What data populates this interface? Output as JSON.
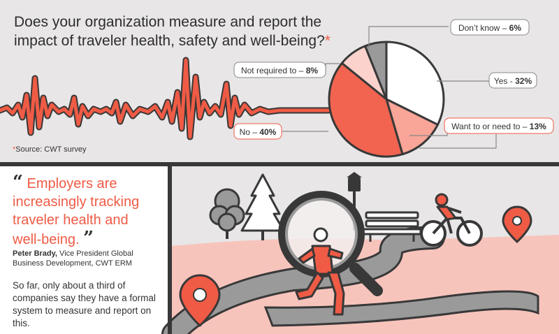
{
  "header": {
    "title_line1": "Does your organization measure and report the",
    "title_line2": "impact of traveler health, safety and well-being?",
    "title_asterisk": "*",
    "source_star": "*",
    "source": "Source: CWT survey"
  },
  "chart_data": {
    "type": "pie",
    "slices": [
      {
        "label": "Yes - ",
        "value": 32,
        "display": "32%",
        "color": "#ffffff"
      },
      {
        "label": "Want to or need to – ",
        "value": 13,
        "display": "13%",
        "color": "#f9a597"
      },
      {
        "label": "No – ",
        "value": 40,
        "display": "40%",
        "color": "#f26450"
      },
      {
        "label": "Not required to – ",
        "value": 8,
        "display": "8%",
        "color": "#fbd3cc"
      },
      {
        "label": "Don’t know – ",
        "value": 6,
        "display": "6%",
        "color": "#9a9a9a"
      }
    ]
  },
  "quote": {
    "open_mark": "“",
    "text": "Employers are increasingly tracking traveler health and well-being.",
    "close_mark": "”",
    "speaker_name": "Peter Brady,",
    "speaker_title": " Vice President Global Business Development, CWT ERM"
  },
  "body": {
    "text": "So far, only about a third of companies say they have a formal system to measure and report on this."
  },
  "colors": {
    "accent": "#ef5b45",
    "dark": "#383838",
    "background_gray": "#e8e6e6",
    "ground_pink": "#f7c4bc"
  }
}
